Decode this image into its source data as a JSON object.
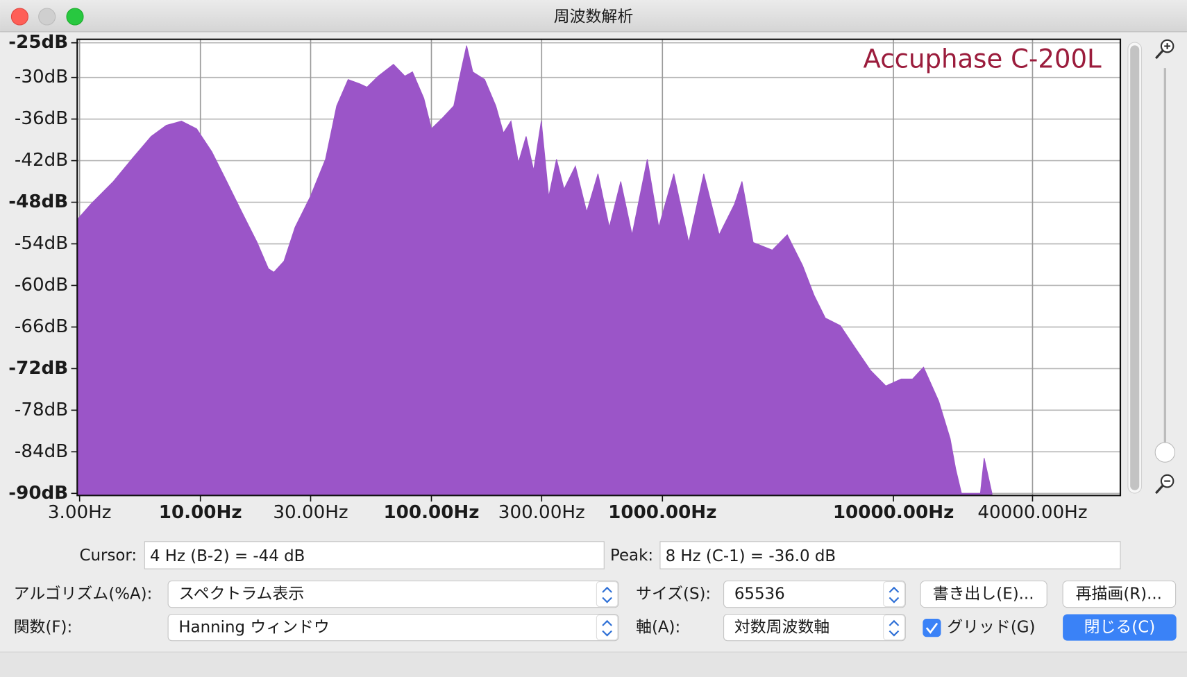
{
  "window": {
    "title": "周波数解析"
  },
  "chart_data": {
    "type": "area",
    "annotation": "Accuphase C-200L",
    "color": "#9b55c8",
    "xscale": "log",
    "grid": true,
    "x": [
      2.93,
      3.35,
      4.2,
      5.07,
      6.12,
      7.12,
      8.28,
      9.63,
      11.2,
      13.0,
      15.1,
      17.6,
      19.7,
      20.8,
      23.0,
      25.7,
      29.9,
      34.8,
      38.9,
      43.6,
      48.8,
      52.6,
      58.9,
      68.5,
      76.7,
      82.8,
      92.7,
      100,
      112,
      125,
      135,
      142,
      151,
      170,
      190,
      205,
      221,
      238,
      257,
      277,
      299,
      322,
      348,
      375,
      420,
      470,
      526,
      589,
      660,
      739,
      860,
      964,
      1120,
      1300,
      1510,
      1760,
      2050,
      2210,
      2470,
      2990,
      3470,
      4040,
      4530,
      5070,
      5890,
      6860,
      7980,
      9270,
      10800,
      12100,
      13500,
      15700,
      17600,
      18600,
      19700,
      23800,
      24700,
      26700
    ],
    "values": [
      -50.5,
      -48.3,
      -45,
      -41.7,
      -38.5,
      -36.9,
      -36.3,
      -37.4,
      -40.7,
      -45,
      -49.4,
      -53.8,
      -57.6,
      -58.1,
      -56.5,
      -51.6,
      -47.2,
      -41.8,
      -34.1,
      -30.3,
      -30.9,
      -31.4,
      -29.8,
      -28.1,
      -29.8,
      -29.2,
      -33,
      -37.4,
      -35.8,
      -34.1,
      -28.7,
      -25.4,
      -29.2,
      -30.3,
      -34.1,
      -38,
      -36.3,
      -42.3,
      -38.5,
      -43.4,
      -36.3,
      -47.2,
      -41.8,
      -46.1,
      -42.8,
      -49.4,
      -43.9,
      -51.6,
      -45,
      -52.7,
      -41.8,
      -51.6,
      -43.9,
      -53.8,
      -43.9,
      -52.7,
      -48.3,
      -45,
      -53.8,
      -54.9,
      -52.7,
      -57.1,
      -61.4,
      -64.7,
      -65.8,
      -69.1,
      -72.3,
      -74.5,
      -73.5,
      -73.5,
      -71.8,
      -76.7,
      -82.1,
      -86.5,
      -90,
      -90,
      -84.9,
      -90
    ],
    "xlim": [
      2.93,
      96000
    ],
    "ylim": [
      -90.3,
      -24.5
    ],
    "xticks": [
      {
        "value": 3,
        "label": "3.00Hz"
      },
      {
        "value": 10,
        "label": "10.00Hz",
        "bold": true
      },
      {
        "value": 30,
        "label": "30.00Hz"
      },
      {
        "value": 100,
        "label": "100.00Hz",
        "bold": true
      },
      {
        "value": 300,
        "label": "300.00Hz"
      },
      {
        "value": 1000,
        "label": "1000.00Hz",
        "bold": true
      },
      {
        "value": 10000,
        "label": "10000.00Hz",
        "bold": true
      },
      {
        "value": 40000,
        "label": "40000.00Hz"
      }
    ],
    "yticks": [
      {
        "value": -25,
        "label": "-25dB",
        "bold": true
      },
      {
        "value": -30,
        "label": "-30dB"
      },
      {
        "value": -36,
        "label": "-36dB"
      },
      {
        "value": -42,
        "label": "-42dB"
      },
      {
        "value": -48,
        "label": "-48dB",
        "bold": true
      },
      {
        "value": -54,
        "label": "-54dB"
      },
      {
        "value": -60,
        "label": "-60dB"
      },
      {
        "value": -66,
        "label": "-66dB"
      },
      {
        "value": -72,
        "label": "-72dB",
        "bold": true
      },
      {
        "value": -78,
        "label": "-78dB"
      },
      {
        "value": -84,
        "label": "-84dB"
      },
      {
        "value": -90,
        "label": "-90dB",
        "bold": true
      }
    ]
  },
  "controls": {
    "cursor_label": "Cursor:",
    "cursor_value": "4 Hz (B-2) = -44 dB",
    "peak_label": "Peak:",
    "peak_value": "8 Hz (C-1) = -36.0 dB",
    "algorithm_label": "アルゴリズム(%A):",
    "algorithm_value": "スペクトラム表示",
    "size_label": "サイズ(S):",
    "size_value": "65536",
    "export_button": "書き出し(E)...",
    "replot_button": "再描画(R)...",
    "function_label": "関数(F):",
    "function_value": "Hanning ウィンドウ",
    "axis_label": "軸(A):",
    "axis_value": "対数周波数軸",
    "grid_checkbox": "グリッド(G)",
    "close_button": "閉じる(C)"
  }
}
